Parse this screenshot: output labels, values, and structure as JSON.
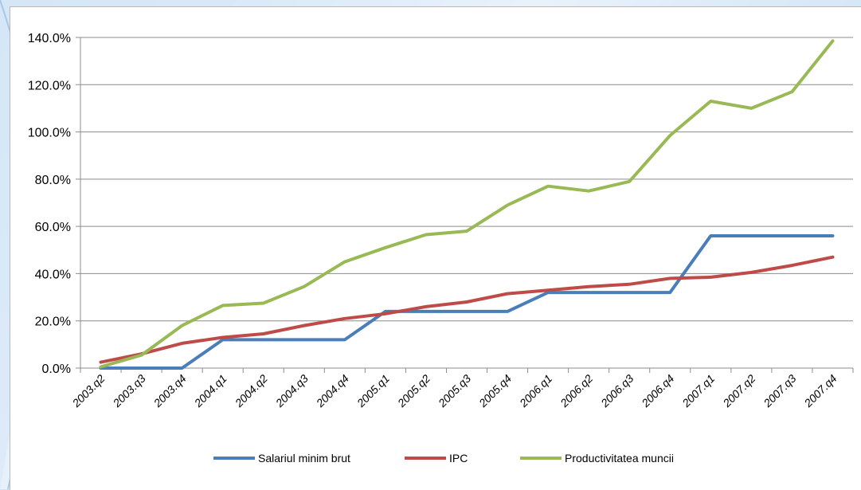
{
  "colors": {
    "salariu": "#4a7ebb",
    "ipc": "#be4b48",
    "productivitate": "#98b954",
    "grid": "#8c8c8c"
  },
  "chart_data": {
    "type": "line",
    "categories": [
      "2003.q2",
      "2003.q3",
      "2003.q4",
      "2004.q1",
      "2004.q2",
      "2004.q3",
      "2004.q4",
      "2005.q1",
      "2005.q2",
      "2005.q3",
      "2005.q4",
      "2006.q1",
      "2006.q2",
      "2006.q3",
      "2006.q4",
      "2007.q1",
      "2007.q2",
      "2007.q3",
      "2007.q4"
    ],
    "y_ticks": [
      "0.0%",
      "20.0%",
      "40.0%",
      "60.0%",
      "80.0%",
      "100.0%",
      "120.0%",
      "140.0%"
    ],
    "ylim": [
      0,
      140
    ],
    "grid": true,
    "legend_position": "bottom",
    "series": [
      {
        "name": "Salariul minim brut",
        "color_key": "salariu",
        "values": [
          0,
          0,
          0,
          12,
          12,
          12,
          12,
          24,
          24,
          24,
          24,
          32,
          32,
          32,
          32,
          56,
          56,
          56,
          56
        ]
      },
      {
        "name": "IPC",
        "color_key": "ipc",
        "values": [
          2.5,
          6,
          10.5,
          13,
          14.5,
          18,
          21,
          23,
          26,
          28,
          31.5,
          33,
          34.5,
          35.5,
          38,
          38.5,
          40.5,
          43.5,
          47
        ]
      },
      {
        "name": "Productivitatea muncii",
        "color_key": "productivitate",
        "values": [
          0.5,
          5.5,
          18,
          26.5,
          27.5,
          34.5,
          45,
          51,
          56.5,
          58,
          69,
          77,
          75,
          79,
          98.5,
          113,
          110,
          117,
          138.5
        ]
      }
    ]
  }
}
